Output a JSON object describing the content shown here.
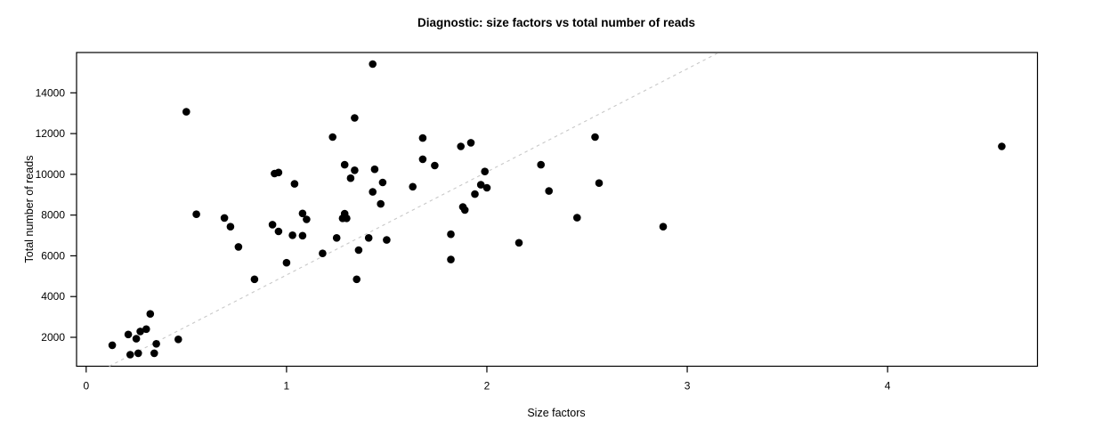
{
  "chart_data": {
    "type": "scatter",
    "title": "Diagnostic: size factors vs total number of reads",
    "xlabel": "Size factors",
    "ylabel": "Total number of reads",
    "x_ticks": [
      0,
      1,
      2,
      3,
      4
    ],
    "y_ticks": [
      2000,
      4000,
      6000,
      8000,
      10000,
      12000,
      14000
    ],
    "xlim": [
      -0.048,
      4.748
    ],
    "ylim": [
      580,
      15980
    ],
    "grid": false,
    "legend": null,
    "point_color": "#000000",
    "axis_color": "#000000",
    "background_color": "#ffffff",
    "reference_line": {
      "style": "dashed",
      "color": "#c8c8c8",
      "slope": 5060,
      "intercept": 0,
      "x1": 0.115,
      "y1": 580,
      "x2": 3.158,
      "y2": 15980
    },
    "points": [
      [
        0.13,
        1610
      ],
      [
        0.21,
        2140
      ],
      [
        0.25,
        1930
      ],
      [
        0.22,
        1150
      ],
      [
        0.26,
        1220
      ],
      [
        0.27,
        2290
      ],
      [
        0.3,
        2400
      ],
      [
        0.32,
        3150
      ],
      [
        0.34,
        1220
      ],
      [
        0.35,
        1680
      ],
      [
        0.46,
        1900
      ],
      [
        0.5,
        13070
      ],
      [
        0.55,
        8040
      ],
      [
        0.69,
        7860
      ],
      [
        0.72,
        7430
      ],
      [
        0.76,
        6440
      ],
      [
        0.84,
        4850
      ],
      [
        0.93,
        7530
      ],
      [
        0.94,
        10040
      ],
      [
        0.96,
        10090
      ],
      [
        0.96,
        7200
      ],
      [
        1.0,
        5660
      ],
      [
        1.03,
        7010
      ],
      [
        1.04,
        9530
      ],
      [
        1.08,
        6990
      ],
      [
        1.08,
        8080
      ],
      [
        1.1,
        7790
      ],
      [
        1.18,
        6120
      ],
      [
        1.23,
        11830
      ],
      [
        1.25,
        6880
      ],
      [
        1.28,
        7840
      ],
      [
        1.29,
        8070
      ],
      [
        1.29,
        10470
      ],
      [
        1.3,
        7840
      ],
      [
        1.32,
        9810
      ],
      [
        1.34,
        10200
      ],
      [
        1.34,
        12770
      ],
      [
        1.35,
        4850
      ],
      [
        1.36,
        6280
      ],
      [
        1.41,
        6880
      ],
      [
        1.43,
        15410
      ],
      [
        1.43,
        9140
      ],
      [
        1.44,
        10250
      ],
      [
        1.47,
        8550
      ],
      [
        1.48,
        9600
      ],
      [
        1.5,
        6780
      ],
      [
        1.63,
        9390
      ],
      [
        1.68,
        11780
      ],
      [
        1.68,
        10740
      ],
      [
        1.74,
        10430
      ],
      [
        1.82,
        7060
      ],
      [
        1.82,
        5820
      ],
      [
        1.87,
        11370
      ],
      [
        1.88,
        8400
      ],
      [
        1.89,
        8250
      ],
      [
        1.92,
        11550
      ],
      [
        1.94,
        9030
      ],
      [
        1.97,
        9490
      ],
      [
        1.99,
        10140
      ],
      [
        2.0,
        9340
      ],
      [
        2.16,
        6640
      ],
      [
        2.27,
        10470
      ],
      [
        2.31,
        9180
      ],
      [
        2.45,
        7870
      ],
      [
        2.54,
        11830
      ],
      [
        2.56,
        9570
      ],
      [
        2.88,
        7430
      ],
      [
        4.57,
        11370
      ]
    ]
  }
}
